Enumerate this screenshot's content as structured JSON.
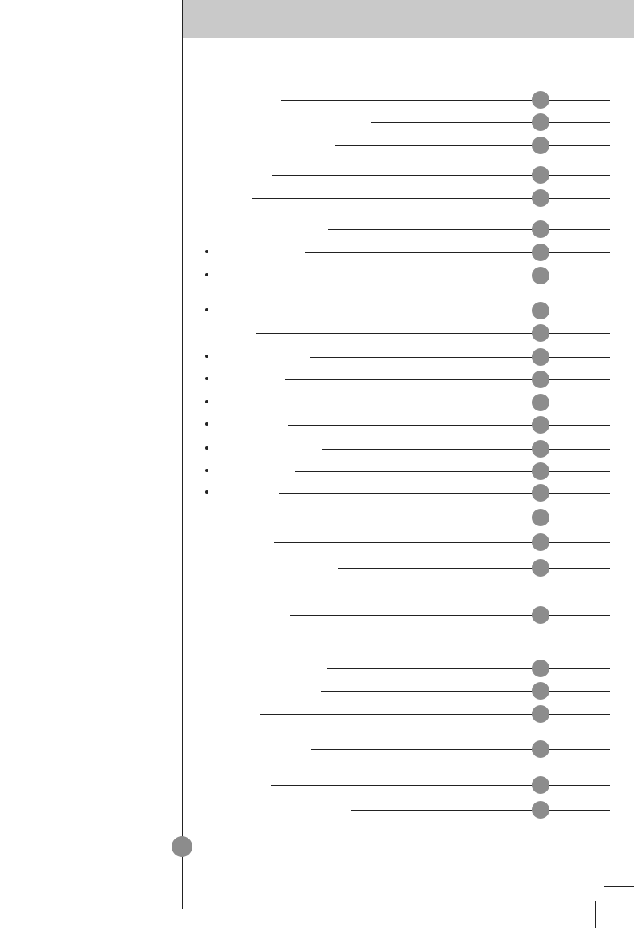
{
  "colors": {
    "header_band": "#c9c9c9",
    "page_dot": "#8c8c8c",
    "rule": "#222222"
  },
  "toc": {
    "entries": [
      {
        "bulleted": false
      },
      {
        "bulleted": false
      },
      {
        "bulleted": false
      },
      {
        "bulleted": false
      },
      {
        "bulleted": false
      },
      {
        "bulleted": false
      },
      {
        "bulleted": true
      },
      {
        "bulleted": true
      },
      {
        "bulleted": true
      },
      {
        "bulleted": false
      },
      {
        "bulleted": true
      },
      {
        "bulleted": true
      },
      {
        "bulleted": true
      },
      {
        "bulleted": true
      },
      {
        "bulleted": true
      },
      {
        "bulleted": true
      },
      {
        "bulleted": true
      },
      {
        "bulleted": false
      },
      {
        "bulleted": false
      },
      {
        "bulleted": false
      },
      {
        "bulleted": false
      },
      {
        "bulleted": false
      },
      {
        "bulleted": false
      },
      {
        "bulleted": false
      },
      {
        "bulleted": false
      },
      {
        "bulleted": false
      },
      {
        "bulleted": false
      }
    ]
  }
}
